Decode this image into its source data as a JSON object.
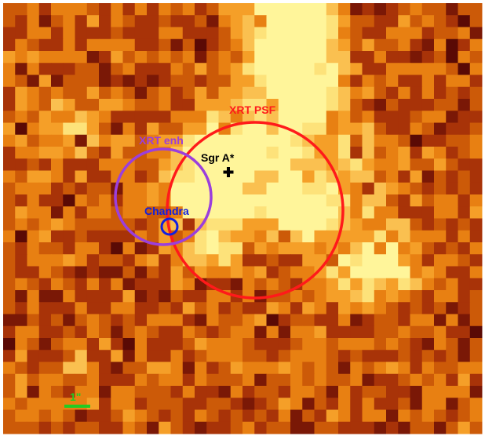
{
  "image": {
    "description_colors": {
      "colormap": [
        "#5a0a05",
        "#7a1806",
        "#a83308",
        "#cc5a08",
        "#e88012",
        "#f59f28",
        "#fac050",
        "#fde27a",
        "#fff59a"
      ],
      "frame": "#ffffff"
    }
  },
  "overlays": {
    "xrt_psf": {
      "label": "XRT PSF",
      "color": "#ff1a1a"
    },
    "xrt_enh": {
      "label": "XRT enh",
      "color": "#9b3fdc"
    },
    "chandra": {
      "label": "Chandra",
      "color": "#1020e0"
    },
    "sgr_a": {
      "label": "Sgr A*",
      "marker": "plus",
      "color": "#000000"
    },
    "scale_bar": {
      "label": "1\"",
      "color": "#22cc22"
    }
  }
}
